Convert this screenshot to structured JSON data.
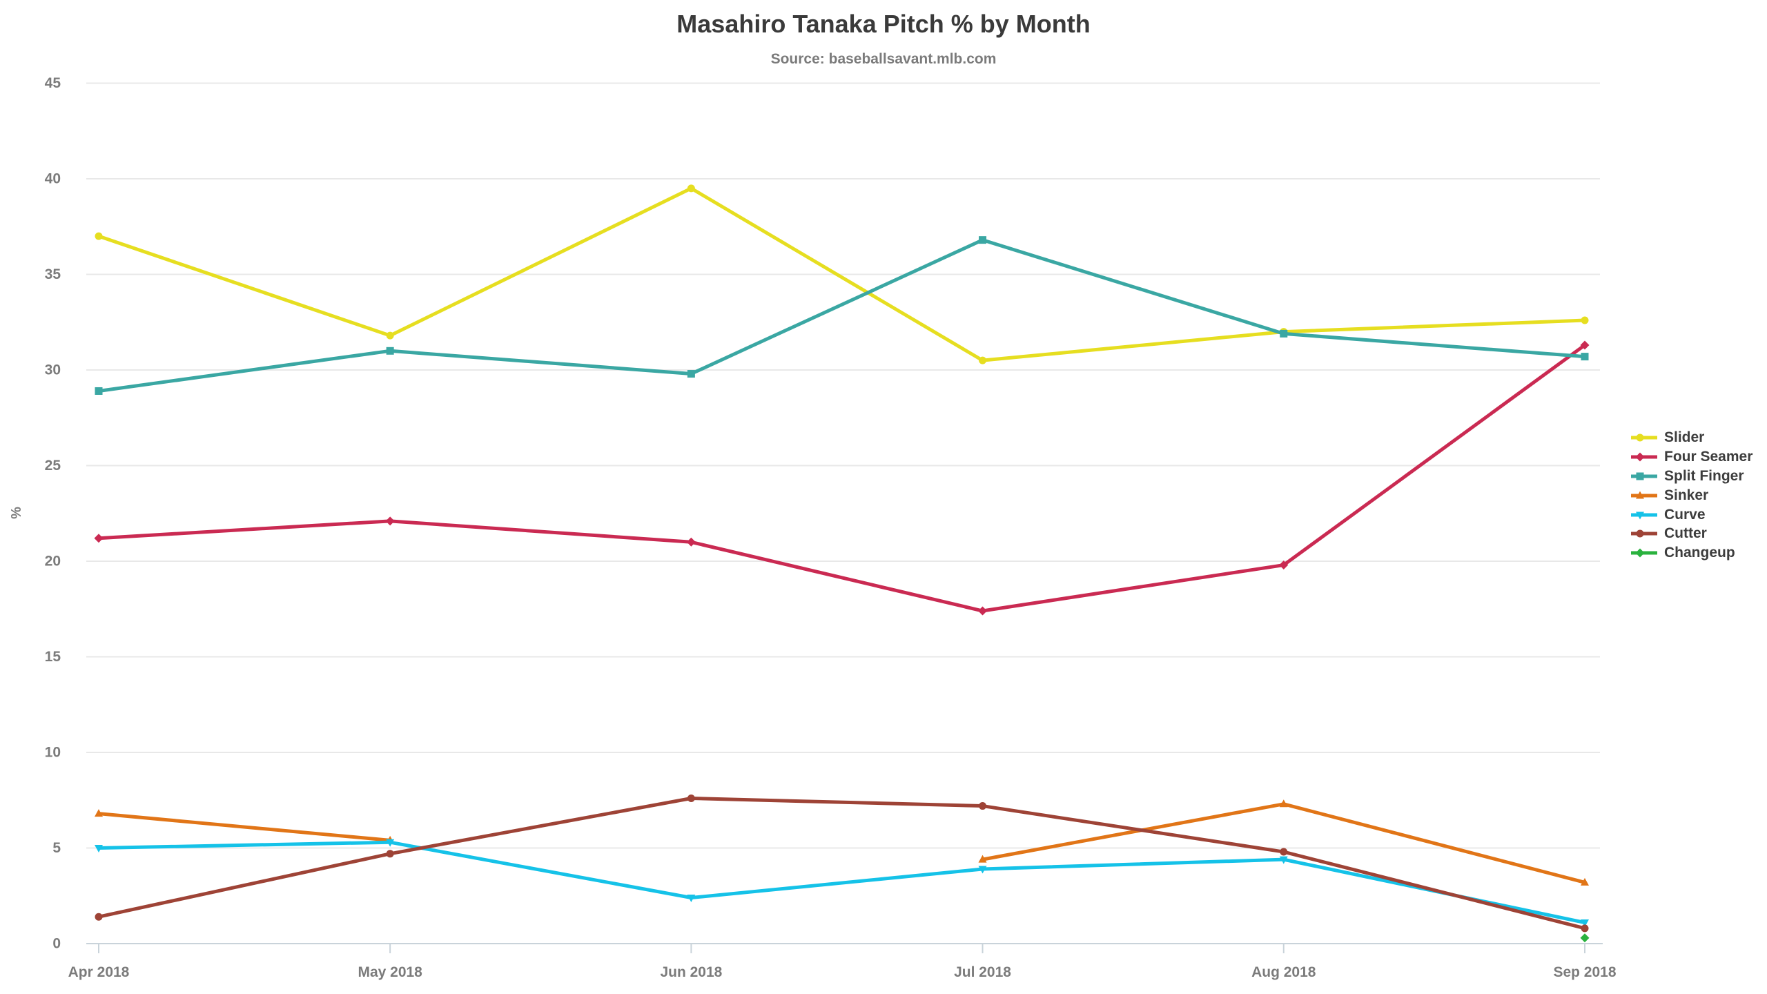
{
  "header": {
    "title": "Masahiro Tanaka Pitch % by Month",
    "subtitle": "Source: baseballsavant.mlb.com"
  },
  "chart_data": {
    "type": "line",
    "x": [
      "Apr 2018",
      "May 2018",
      "Jun 2018",
      "Jul 2018",
      "Aug 2018",
      "Sep 2018"
    ],
    "series": [
      {
        "name": "Slider",
        "color": "#e6de20",
        "marker": "circle",
        "values": [
          37.0,
          31.8,
          39.5,
          30.5,
          32.0,
          32.6
        ]
      },
      {
        "name": "Four Seamer",
        "color": "#ca2a52",
        "marker": "diamond",
        "values": [
          21.2,
          22.1,
          21.0,
          17.4,
          19.8,
          31.3
        ]
      },
      {
        "name": "Split Finger",
        "color": "#3aa7a3",
        "marker": "square",
        "values": [
          28.9,
          31.0,
          29.8,
          36.8,
          31.9,
          30.7
        ]
      },
      {
        "name": "Sinker",
        "color": "#e17517",
        "marker": "triangle-up",
        "values": [
          6.8,
          5.4,
          null,
          4.4,
          7.3,
          3.2
        ]
      },
      {
        "name": "Curve",
        "color": "#15c2e8",
        "marker": "triangle-down",
        "values": [
          5.0,
          5.3,
          2.4,
          3.9,
          4.4,
          1.1
        ]
      },
      {
        "name": "Cutter",
        "color": "#9e4336",
        "marker": "circle",
        "values": [
          1.4,
          4.7,
          7.6,
          7.2,
          4.8,
          0.8
        ]
      },
      {
        "name": "Changeup",
        "color": "#2ab23e",
        "marker": "diamond",
        "values": [
          null,
          null,
          null,
          null,
          null,
          0.3
        ]
      }
    ],
    "title": "Masahiro Tanaka Pitch % by Month",
    "subtitle": "Source: baseballsavant.mlb.com",
    "xlabel": "",
    "ylabel": "%",
    "ylim": [
      0,
      45
    ],
    "ytick_step": 5,
    "grid": "horizontal",
    "legend_position": "right",
    "time_axis": true
  },
  "colors": {
    "grid_line": "#e8e8e8",
    "axis_line": "#c9d3da",
    "tick_label": "#7b7b7b",
    "title_text": "#3a3a3a",
    "subtitle_text": "#7b7b7b",
    "legend_text": "#3d3d3d",
    "background": "#ffffff"
  }
}
